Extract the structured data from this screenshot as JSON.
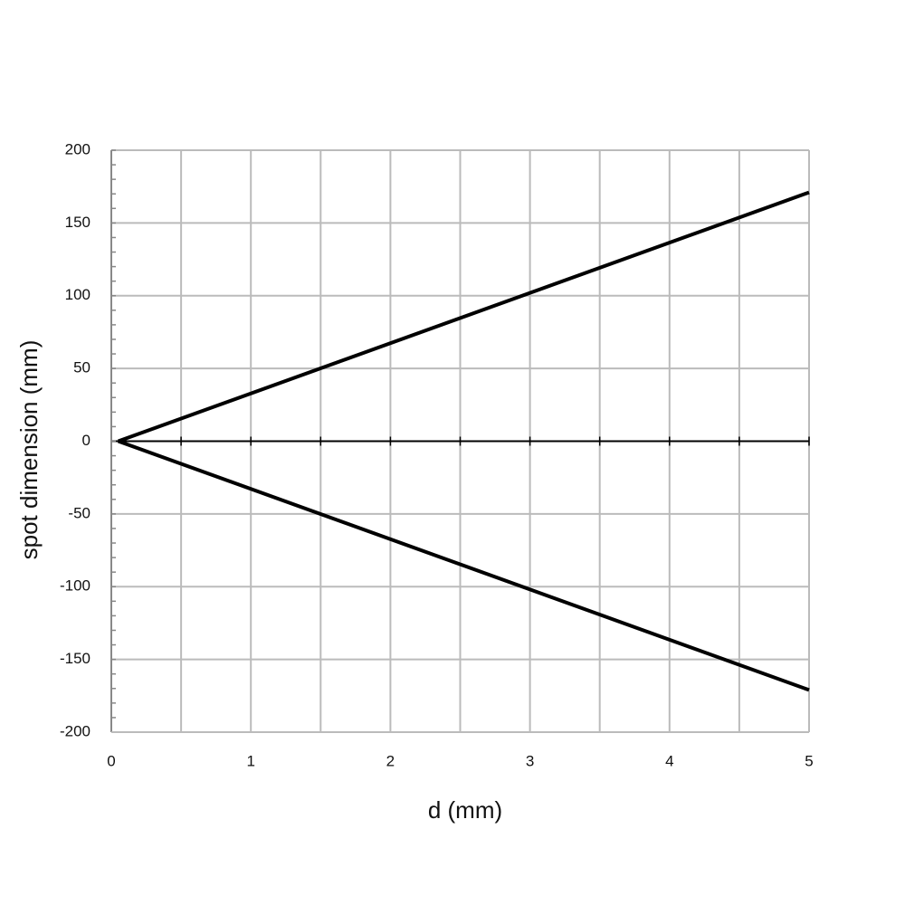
{
  "chart_data": {
    "type": "line",
    "x_label": "d (mm)",
    "y_label": "spot dimension (mm)",
    "xlim": [
      0,
      5
    ],
    "xticks": [
      0,
      1,
      2,
      3,
      4,
      5
    ],
    "ylim": [
      -200,
      200
    ],
    "yticks": [
      -200,
      -150,
      -100,
      -50,
      0,
      50,
      100,
      150,
      200
    ],
    "grid": true,
    "x_grid_step": 0.5,
    "y_minor_step": 10,
    "series": [
      {
        "color": "#000000",
        "x": [
          0.05,
          5
        ],
        "values": [
          0,
          171
        ]
      },
      {
        "color": "#000000",
        "x": [
          0.05,
          5
        ],
        "values": [
          0,
          -171
        ]
      }
    ]
  }
}
